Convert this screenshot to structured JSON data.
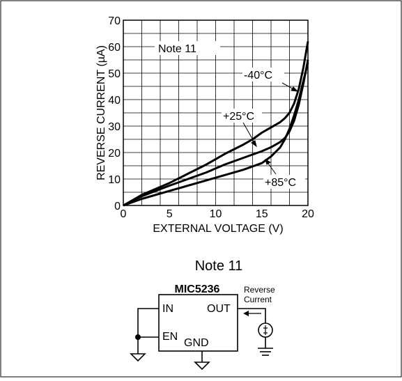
{
  "chart_data": {
    "type": "line",
    "xlabel": "EXTERNAL VOLTAGE (V)",
    "ylabel": "REVERSE CURRENT (µA)",
    "xlim": [
      0,
      20
    ],
    "ylim": [
      0,
      70
    ],
    "x_ticks": [
      "0",
      "5",
      "10",
      "15",
      "20"
    ],
    "y_ticks": [
      "0",
      "10",
      "20",
      "30",
      "40",
      "50",
      "60",
      "70"
    ],
    "grid": true,
    "annotation": "Note 11",
    "series": [
      {
        "name": "-40°C",
        "x": [
          0,
          2,
          5,
          7,
          9,
          11,
          13,
          14,
          15,
          16,
          17,
          17.5,
          18,
          18.5,
          19,
          19.5,
          20
        ],
        "y": [
          0,
          4,
          8.5,
          12,
          15.5,
          19.5,
          23,
          25,
          27.5,
          29.5,
          31.5,
          33,
          35,
          38.5,
          44,
          52,
          62
        ]
      },
      {
        "name": "+25°C",
        "x": [
          0,
          2,
          5,
          7,
          9,
          11,
          13,
          15,
          16,
          17,
          17.5,
          18,
          18.5,
          19,
          19.5,
          20
        ],
        "y": [
          0,
          3.5,
          7.5,
          10,
          12.5,
          15.5,
          18,
          20.5,
          22,
          24,
          25.5,
          28,
          32,
          38,
          46,
          55
        ]
      },
      {
        "name": "+85°C",
        "x": [
          0,
          2,
          5,
          7,
          9,
          11,
          13,
          15,
          16,
          17,
          17.5,
          18,
          18.5,
          19,
          19.5,
          20
        ],
        "y": [
          0,
          2.5,
          5.5,
          7.5,
          9.5,
          11.5,
          13.5,
          16,
          18.5,
          22,
          25,
          29,
          34,
          40,
          47,
          54
        ]
      }
    ]
  },
  "schematic": {
    "title": "Note 11",
    "chip_label": "MIC5236",
    "pin_in": "IN",
    "pin_en": "EN",
    "pin_out": "OUT",
    "pin_gnd": "GND",
    "reverse_line1": "Reverse",
    "reverse_line2": "Current"
  }
}
